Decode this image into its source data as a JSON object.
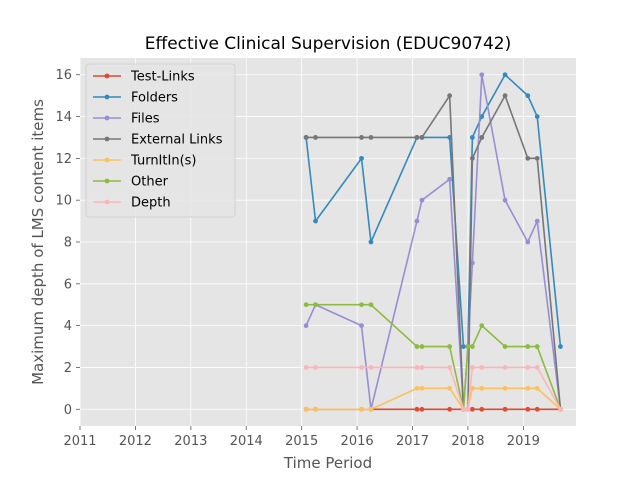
{
  "chart_data": {
    "type": "line",
    "title": "Effective Clinical Supervision (EDUC90742)",
    "xlabel": "Time Period",
    "ylabel": "Maximum depth of LMS content items",
    "xlim": [
      2011.0,
      2019.95
    ],
    "ylim": [
      -0.8,
      16.8
    ],
    "xticks": [
      2011,
      2012,
      2013,
      2014,
      2015,
      2016,
      2017,
      2018,
      2019
    ],
    "xtick_labels": [
      "2011",
      "2012",
      "2013",
      "2014",
      "2015",
      "2016",
      "2017",
      "2018",
      "2019"
    ],
    "yticks": [
      0,
      2,
      4,
      6,
      8,
      10,
      12,
      14,
      16
    ],
    "ytick_labels": [
      "0",
      "2",
      "4",
      "6",
      "8",
      "10",
      "12",
      "14",
      "16"
    ],
    "grid": true,
    "legend_position": "top-left",
    "series": [
      {
        "name": "Test-Links",
        "color": "#E24A33",
        "points": [
          [
            2015.08,
            0
          ],
          [
            2015.25,
            0
          ],
          [
            2016.08,
            0
          ],
          [
            2016.25,
            0
          ],
          [
            2017.08,
            0
          ],
          [
            2017.17,
            0
          ],
          [
            2017.67,
            0
          ],
          [
            2017.92,
            0
          ],
          [
            2018.0,
            0
          ],
          [
            2018.08,
            0
          ],
          [
            2018.25,
            0
          ],
          [
            2018.67,
            0
          ],
          [
            2019.08,
            0
          ],
          [
            2019.25,
            0
          ],
          [
            2019.67,
            0
          ]
        ]
      },
      {
        "name": "Folders",
        "color": "#348ABD",
        "points": [
          [
            2015.08,
            13
          ],
          [
            2015.25,
            9
          ],
          [
            2016.08,
            12
          ],
          [
            2016.25,
            8
          ],
          [
            2017.08,
            13
          ],
          [
            2017.17,
            13
          ],
          [
            2017.67,
            13
          ],
          [
            2017.92,
            3
          ],
          [
            2018.0,
            3
          ],
          [
            2018.08,
            13
          ],
          [
            2018.25,
            14
          ],
          [
            2018.67,
            16
          ],
          [
            2019.08,
            15
          ],
          [
            2019.25,
            14
          ],
          [
            2019.67,
            3
          ]
        ]
      },
      {
        "name": "Files",
        "color": "#988ED5",
        "points": [
          [
            2015.08,
            4
          ],
          [
            2015.25,
            5
          ],
          [
            2016.08,
            4
          ],
          [
            2016.25,
            0
          ],
          [
            2017.08,
            9
          ],
          [
            2017.17,
            10
          ],
          [
            2017.67,
            11
          ],
          [
            2017.92,
            0
          ],
          [
            2018.0,
            3
          ],
          [
            2018.08,
            7
          ],
          [
            2018.25,
            16
          ],
          [
            2018.67,
            10
          ],
          [
            2019.08,
            8
          ],
          [
            2019.25,
            9
          ],
          [
            2019.67,
            0
          ]
        ]
      },
      {
        "name": "External Links",
        "color": "#777777",
        "points": [
          [
            2015.08,
            13
          ],
          [
            2015.25,
            13
          ],
          [
            2016.08,
            13
          ],
          [
            2016.25,
            13
          ],
          [
            2017.08,
            13
          ],
          [
            2017.17,
            13
          ],
          [
            2017.67,
            15
          ],
          [
            2017.92,
            0
          ],
          [
            2018.0,
            0
          ],
          [
            2018.08,
            12
          ],
          [
            2018.25,
            13
          ],
          [
            2018.67,
            15
          ],
          [
            2019.08,
            12
          ],
          [
            2019.25,
            12
          ],
          [
            2019.67,
            0
          ]
        ]
      },
      {
        "name": "TurnItIn(s)",
        "color": "#FBC15E",
        "points": [
          [
            2015.08,
            0
          ],
          [
            2015.25,
            0
          ],
          [
            2016.08,
            0
          ],
          [
            2016.25,
            0
          ],
          [
            2017.08,
            1
          ],
          [
            2017.17,
            1
          ],
          [
            2017.67,
            1
          ],
          [
            2017.92,
            0
          ],
          [
            2018.0,
            0
          ],
          [
            2018.08,
            1
          ],
          [
            2018.25,
            1
          ],
          [
            2018.67,
            1
          ],
          [
            2019.08,
            1
          ],
          [
            2019.25,
            1
          ],
          [
            2019.67,
            0
          ]
        ]
      },
      {
        "name": "Other",
        "color": "#8EBA42",
        "points": [
          [
            2015.08,
            5
          ],
          [
            2015.25,
            5
          ],
          [
            2016.08,
            5
          ],
          [
            2016.25,
            5
          ],
          [
            2017.08,
            3
          ],
          [
            2017.17,
            3
          ],
          [
            2017.67,
            3
          ],
          [
            2017.92,
            0
          ],
          [
            2018.0,
            3
          ],
          [
            2018.08,
            3
          ],
          [
            2018.25,
            4
          ],
          [
            2018.67,
            3
          ],
          [
            2019.08,
            3
          ],
          [
            2019.25,
            3
          ],
          [
            2019.67,
            0
          ]
        ]
      },
      {
        "name": "Depth",
        "color": "#FFB5B8",
        "points": [
          [
            2015.08,
            2
          ],
          [
            2015.25,
            2
          ],
          [
            2016.08,
            2
          ],
          [
            2016.25,
            2
          ],
          [
            2017.08,
            2
          ],
          [
            2017.17,
            2
          ],
          [
            2017.67,
            2
          ],
          [
            2017.92,
            0
          ],
          [
            2018.0,
            0
          ],
          [
            2018.08,
            2
          ],
          [
            2018.25,
            2
          ],
          [
            2018.67,
            2
          ],
          [
            2019.08,
            2
          ],
          [
            2019.25,
            2
          ],
          [
            2019.67,
            0
          ]
        ]
      }
    ]
  }
}
